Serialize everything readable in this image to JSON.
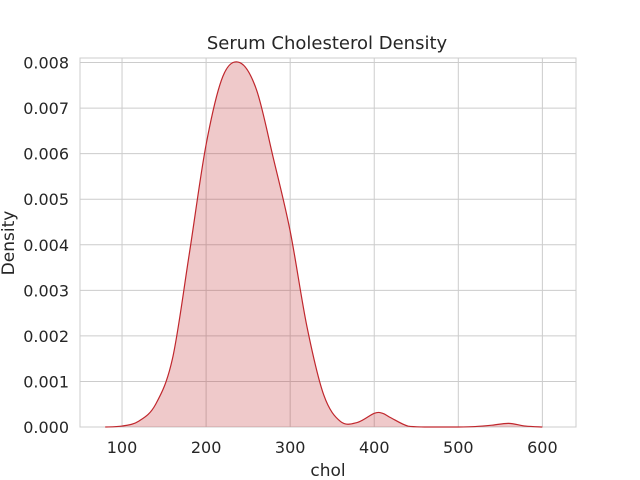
{
  "chart_data": {
    "type": "area",
    "title": "Serum Cholesterol Density",
    "xlabel": "chol",
    "ylabel": "Density",
    "xlim": [
      50,
      640
    ],
    "ylim": [
      0,
      0.0081
    ],
    "xticks": [
      100,
      200,
      300,
      400,
      500,
      600
    ],
    "yticks": [
      0.0,
      0.001,
      0.002,
      0.003,
      0.004,
      0.005,
      0.006,
      0.007,
      0.008
    ],
    "xtick_labels": [
      "100",
      "200",
      "300",
      "400",
      "500",
      "600"
    ],
    "ytick_labels": [
      "0.000",
      "0.001",
      "0.002",
      "0.003",
      "0.004",
      "0.005",
      "0.006",
      "0.007",
      "0.008"
    ],
    "grid": true,
    "series": [
      {
        "color": "#c0272d",
        "fill_color": "#c0272d",
        "x": [
          80,
          100,
          120,
          140,
          160,
          180,
          200,
          220,
          240,
          260,
          280,
          300,
          320,
          340,
          360,
          380,
          400,
          410,
          420,
          440,
          460,
          480,
          500,
          520,
          540,
          560,
          580,
          600
        ],
        "y": [
          0.0,
          2e-05,
          0.00013,
          0.0005,
          0.0015,
          0.0038,
          0.0062,
          0.0077,
          0.008,
          0.0074,
          0.0059,
          0.0043,
          0.0022,
          0.0007,
          0.00012,
          0.0001,
          0.0003,
          0.0003,
          0.0002,
          2e-05,
          0.0,
          0.0,
          0.0,
          1e-05,
          4e-05,
          8e-05,
          2e-05,
          0.0
        ]
      }
    ]
  }
}
